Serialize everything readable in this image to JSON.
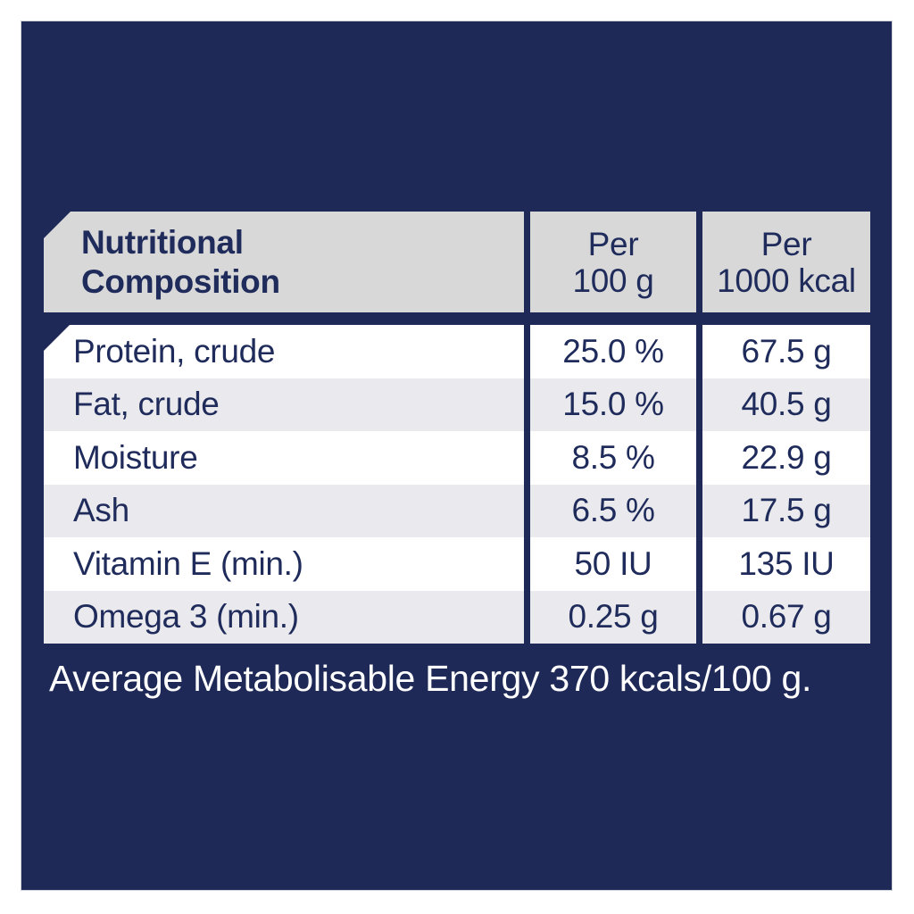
{
  "colors": {
    "navy": "#1e2957",
    "header_gray": "#d8d8d9",
    "stripe_gray": "#eaeaee",
    "row_white": "#ffffff",
    "text_navy": "#1f2b5a",
    "footer_white": "#ffffff"
  },
  "table": {
    "header": {
      "title_line1": "Nutritional",
      "title_line2": "Composition",
      "columns": [
        {
          "line1": "Per",
          "line2": "100 g"
        },
        {
          "line1": "Per",
          "line2": "1000 kcal"
        }
      ]
    },
    "rows": [
      {
        "label": "Protein, crude",
        "per_100g": "25.0 %",
        "per_1000kcal": "67.5 g"
      },
      {
        "label": "Fat, crude",
        "per_100g": "15.0 %",
        "per_1000kcal": "40.5 g"
      },
      {
        "label": "Moisture",
        "per_100g": "8.5 %",
        "per_1000kcal": "22.9 g"
      },
      {
        "label": "Ash",
        "per_100g": "6.5 %",
        "per_1000kcal": "17.5 g"
      },
      {
        "label": "Vitamin E (min.)",
        "per_100g": "50 IU",
        "per_1000kcal": "135 IU"
      },
      {
        "label": "Omega 3 (min.)",
        "per_100g": "0.25 g",
        "per_1000kcal": "0.67 g"
      }
    ]
  },
  "footer": {
    "text": "Average Metabolisable Energy 370 kcals/100 g."
  }
}
